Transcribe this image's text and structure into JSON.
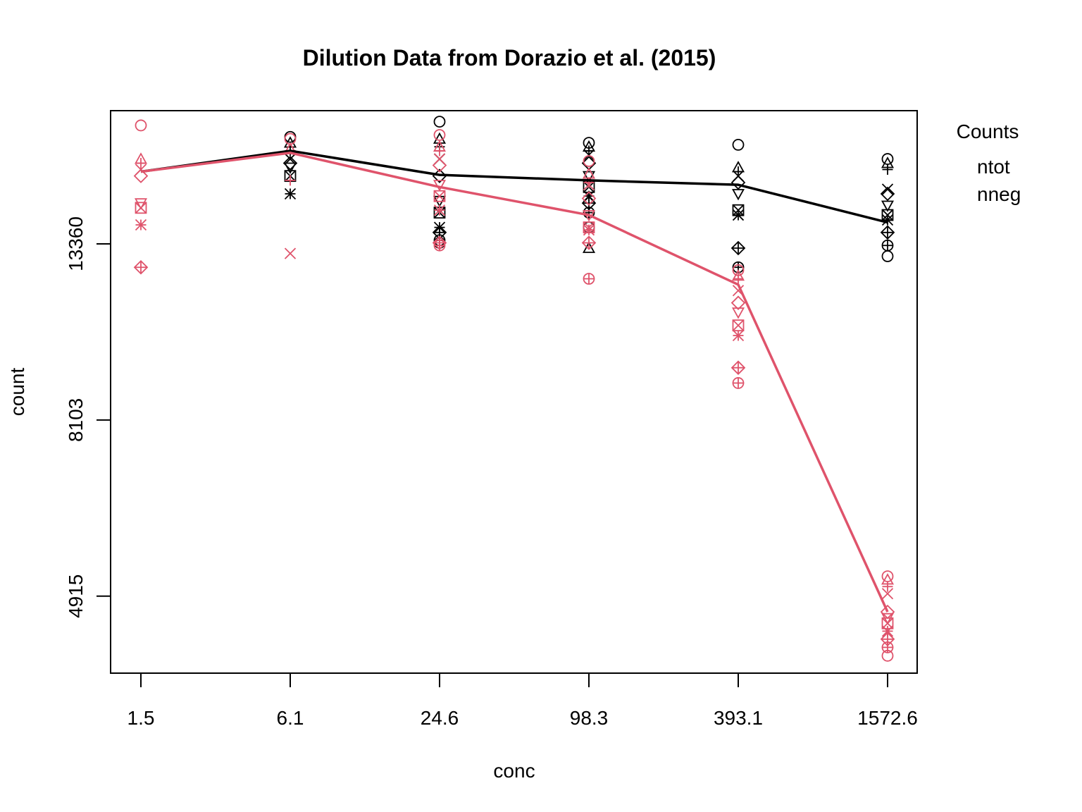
{
  "chart_data": {
    "type": "scatter",
    "title": "Dilution Data from Dorazio et al. (2015)",
    "xlabel": "conc",
    "ylabel": "count",
    "x_scale": "log",
    "y_scale": "log",
    "categories": [
      "1.5",
      "6.1",
      "24.6",
      "98.3",
      "393.1",
      "1572.6"
    ],
    "yticks": [
      4915,
      8103,
      13360
    ],
    "ylim": [
      3950,
      19500
    ],
    "legend": {
      "title": "Counts",
      "position": "top-right outside plot",
      "entries": [
        {
          "label": "ntot",
          "color": "#000000"
        },
        {
          "label": "nneg",
          "color": "#DF536B"
        }
      ]
    },
    "series": [
      {
        "name": "ntot",
        "color": "#000000",
        "line": [
          16400,
          17400,
          16250,
          16000,
          15800,
          14200
        ],
        "points": [
          [],
          [
            18100,
            17800,
            17400,
            17000,
            16800,
            16600,
            16200,
            15400
          ],
          [
            18900,
            18000,
            17600,
            17000,
            16200,
            15100,
            14600,
            14000,
            13800,
            13500,
            13400
          ],
          [
            17800,
            17600,
            17400,
            17200,
            16800,
            16200,
            15700,
            15300,
            15000,
            14600,
            14000,
            13200
          ],
          [
            17700,
            16600,
            16400,
            16200,
            15900,
            15400,
            14700,
            14500,
            13200,
            12500
          ],
          [
            17000,
            16800,
            16500,
            15600,
            15400,
            14900,
            14500,
            14300,
            13800,
            13300,
            12900
          ]
        ]
      },
      {
        "name": "nneg",
        "color": "#DF536B",
        "line": [
          16400,
          17300,
          15700,
          14500,
          11900,
          4700
        ],
        "points": [
          [
            18700,
            17000,
            16800,
            16500,
            16200,
            15000,
            14800,
            14100,
            12500
          ],
          [
            18000,
            17500,
            16000,
            13000
          ],
          [
            18200,
            17600,
            17400,
            17000,
            16700,
            15800,
            15300,
            14700,
            13400,
            13300
          ],
          [
            16900,
            16300,
            15900,
            15800,
            15200,
            14500,
            14000,
            13900,
            13400,
            12100
          ],
          [
            12400,
            12200,
            12100,
            11700,
            11300,
            11000,
            10600,
            10300,
            9400,
            9000
          ],
          [
            5200,
            5150,
            5050,
            4950,
            4700,
            4620,
            4550,
            4450,
            4350,
            4250,
            4150
          ]
        ]
      }
    ]
  }
}
